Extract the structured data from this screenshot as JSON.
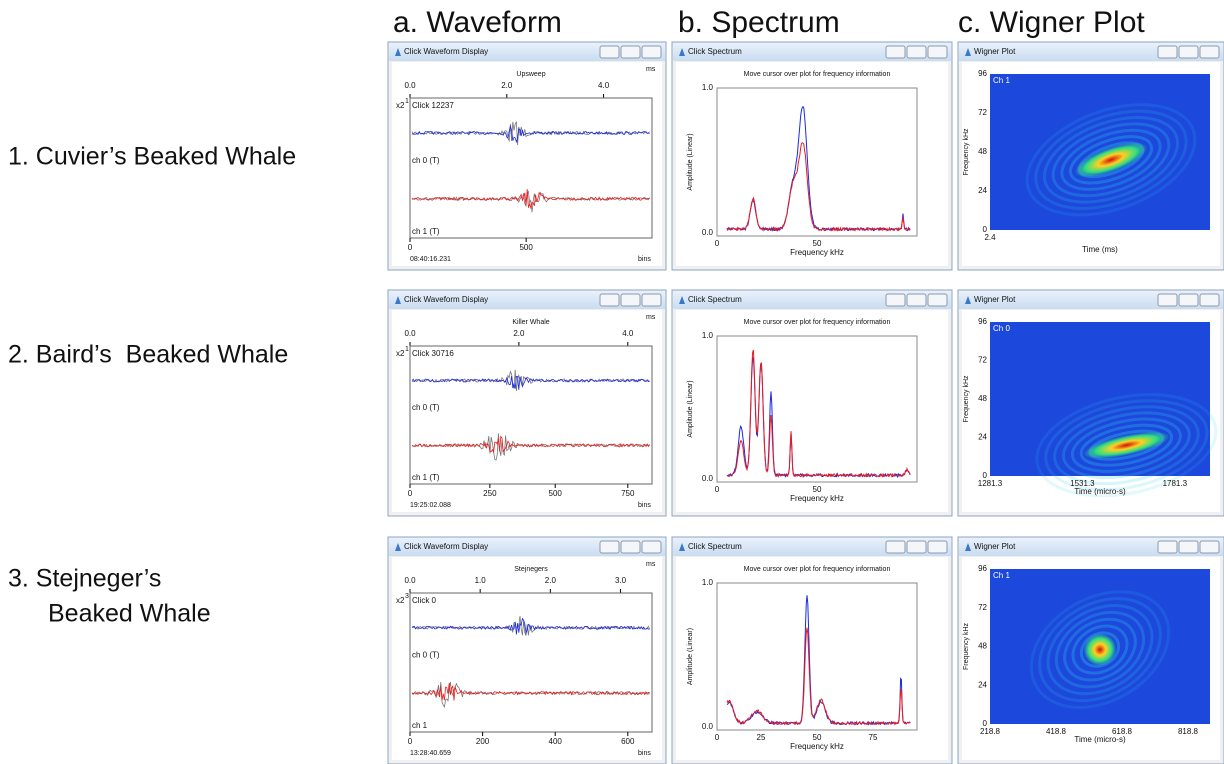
{
  "columns": [
    "a. Waveform",
    "b. Spectrum",
    "c. Wigner Plot"
  ],
  "rows": [
    {
      "label": [
        "1. Cuvier’s Beaked Whale"
      ],
      "waveform": {
        "window_title": "Click Waveform Display",
        "title": "Upsweep",
        "unit_top": "ms",
        "top_ticks": [
          "0.0",
          "2.0",
          "4.0"
        ],
        "scale": "x2",
        "scale_exp": "1",
        "click": "Click 12237",
        "ch0": "ch 0 (T)",
        "ch1": "ch 1 (T)",
        "bottom_ticks": [
          "0",
          "500"
        ],
        "time": "08:40:16.231",
        "unit_bottom": "bins"
      },
      "spectrum": {
        "window_title": "Click Spectrum",
        "hint": "Move cursor over plot for frequency information",
        "y_label": "Amplitude (Linear)",
        "y_ticks": [
          "1.0",
          "0.0"
        ],
        "x_ticks": [
          "0",
          "50"
        ],
        "x_label": "Frequency kHz"
      },
      "wigner": {
        "window_title": "Wigner Plot",
        "channel": "Ch 1",
        "y_label": "Frequency kHz",
        "y_ticks": [
          "96",
          "72",
          "48",
          "24",
          "0"
        ],
        "x_ticks": [
          "2.4"
        ],
        "x_label": "Time (ms)"
      }
    },
    {
      "label": [
        "2. Baird’s  Beaked Whale"
      ],
      "waveform": {
        "window_title": "Click Waveform Display",
        "title": "Killer Whale",
        "unit_top": "ms",
        "top_ticks": [
          "0.0",
          "2.0",
          "4.0"
        ],
        "scale": "x2",
        "scale_exp": "1",
        "click": "Click 30716",
        "ch0": "ch 0 (T)",
        "ch1": "ch 1 (T)",
        "bottom_ticks": [
          "0",
          "250",
          "500",
          "750"
        ],
        "time": "19:25:02.088",
        "unit_bottom": "bins"
      },
      "spectrum": {
        "window_title": "Click Spectrum",
        "hint": "Move cursor over plot for frequency information",
        "y_label": "Amplitude (Linear)",
        "y_ticks": [
          "1.0",
          "0.0"
        ],
        "x_ticks": [
          "0",
          "50"
        ],
        "x_label": "Frequency kHz"
      },
      "wigner": {
        "window_title": "Wigner Plot",
        "channel": "Ch 0",
        "y_label": "Frequency kHz",
        "y_ticks": [
          "96",
          "72",
          "48",
          "24",
          "0"
        ],
        "x_ticks": [
          "1281.3",
          "1531.3",
          "1781.3"
        ],
        "x_label": "Time (micro-s)"
      }
    },
    {
      "label": [
        "3. Stejneger’s",
        "Beaked Whale"
      ],
      "waveform": {
        "window_title": "Click Waveform Display",
        "title": "Stejnegers",
        "unit_top": "ms",
        "top_ticks": [
          "0.0",
          "1.0",
          "2.0",
          "3.0"
        ],
        "scale": "x2",
        "scale_exp": "3",
        "click": "Click 0",
        "ch0": "ch 0 (T)",
        "ch1": "ch 1",
        "bottom_ticks": [
          "0",
          "200",
          "400",
          "600"
        ],
        "time": "13:28:40.659",
        "unit_bottom": "bins"
      },
      "spectrum": {
        "window_title": "Click Spectrum",
        "hint": "Move cursor over plot for frequency information",
        "y_label": "Amplitude (Linear)",
        "y_ticks": [
          "1.0",
          "0.0"
        ],
        "x_ticks": [
          "0",
          "25",
          "50",
          "75"
        ],
        "x_label": "Frequency kHz"
      },
      "wigner": {
        "window_title": "Wigner Plot",
        "channel": "Ch 1",
        "y_label": "Frequency kHz",
        "y_ticks": [
          "96",
          "72",
          "48",
          "24",
          "0"
        ],
        "x_ticks": [
          "218.8",
          "418.8",
          "618.8",
          "818.8"
        ],
        "x_label": "Time (micro-s)"
      }
    }
  ]
}
